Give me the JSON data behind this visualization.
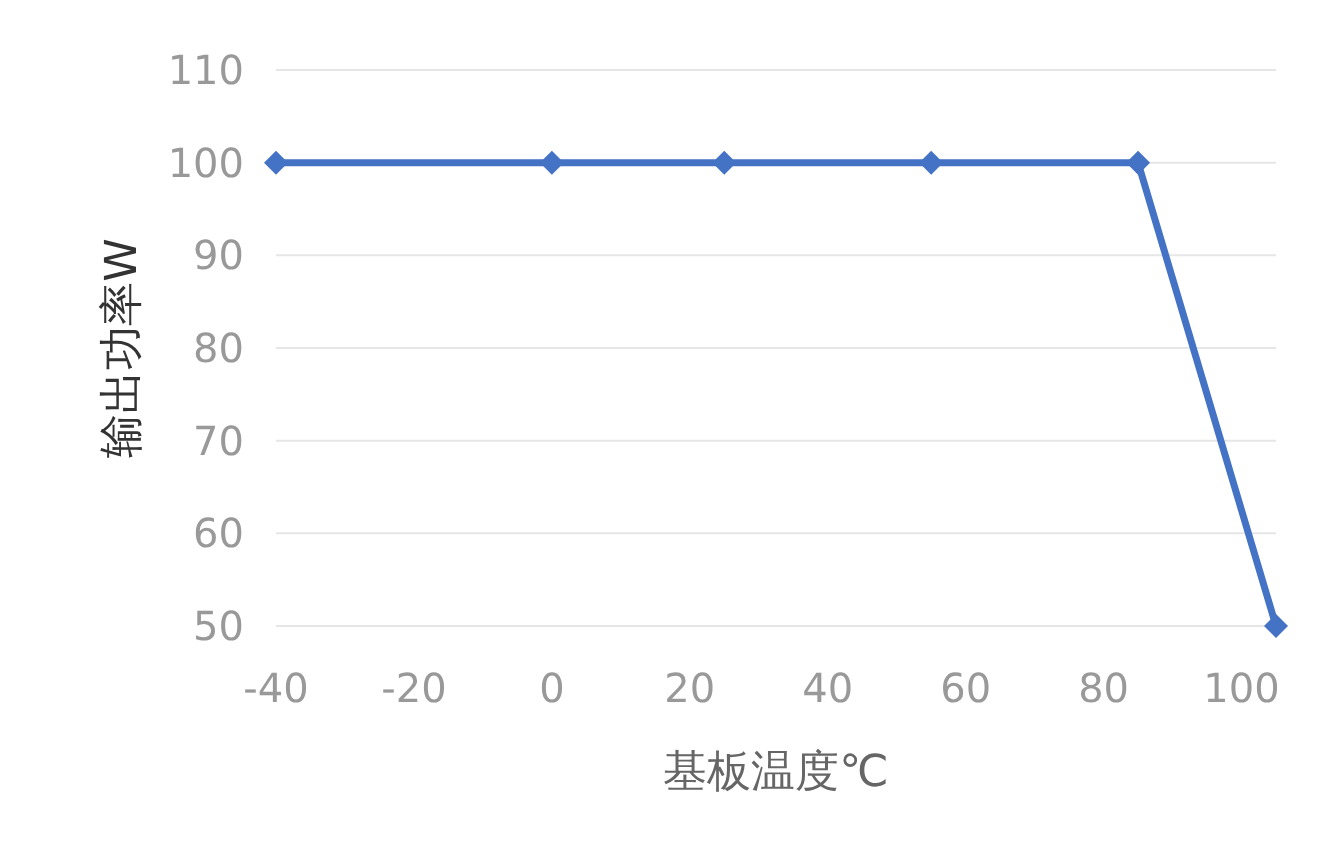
{
  "chart_data": {
    "type": "line",
    "xlabel": "基板温度℃",
    "ylabel": "输出功率W",
    "x": [
      -40,
      0,
      25,
      55,
      85,
      105
    ],
    "series": [
      {
        "color": "#4472c4",
        "values": [
          100,
          100,
          100,
          100,
          100,
          50
        ]
      }
    ],
    "xlim": [
      -40,
      105
    ],
    "xticks": [
      -40,
      -20,
      0,
      20,
      40,
      60,
      80,
      100
    ],
    "ylim": [
      50,
      110
    ],
    "yticks": [
      50,
      60,
      70,
      80,
      90,
      100,
      110
    ],
    "grid": "y",
    "marker": "diamond",
    "line_style": "solid"
  }
}
